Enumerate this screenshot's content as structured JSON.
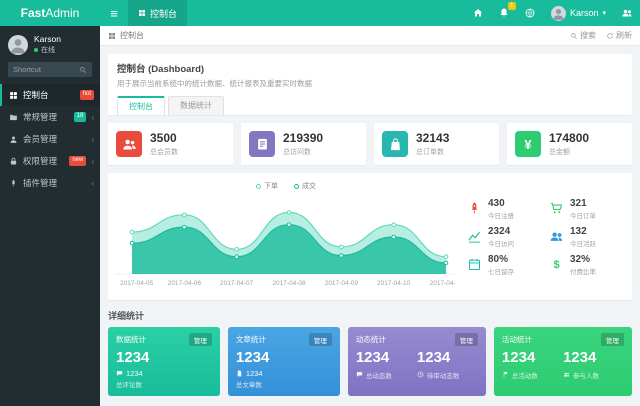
{
  "colors": {
    "accent": "#18bc9c",
    "navbar_bg": "#18bc9c",
    "sidebar_bg": "#222d32",
    "content_bg": "#f1f4f6",
    "badge_hot": "#e74c3c",
    "badge_count": "#18bc9c",
    "badge_new": "#e74c3c",
    "notification_badge": "#f1c40f"
  },
  "navbar": {
    "logo_bold": "Fast",
    "logo_light": "Admin",
    "tab": {
      "label": "控制台"
    },
    "notification_count": "1",
    "user_name": "Karson"
  },
  "sidebar": {
    "user": {
      "name": "Karson",
      "status": "在线"
    },
    "shortcut_label": "Shortcut",
    "items": [
      {
        "label": "控制台",
        "badge": "hot",
        "active": true
      },
      {
        "label": "常规管理",
        "badge": "18"
      },
      {
        "label": "会员管理",
        "badge": ""
      },
      {
        "label": "权限管理",
        "badge": "new"
      },
      {
        "label": "插件管理",
        "badge": ""
      }
    ]
  },
  "toolbar": {
    "breadcrumb": "控制台",
    "search_label": "搜索",
    "refresh_label": "刷新"
  },
  "intro": {
    "title": "控制台 (Dashboard)",
    "subtitle": "用于展示当前系统中的统计数据、统计报表及重要实时数据",
    "tabs": [
      {
        "label": "控制台",
        "active": true
      },
      {
        "label": "数据统计",
        "active": false
      }
    ]
  },
  "stats": [
    {
      "value": "3500",
      "label": "总会员数",
      "color": "#e74c3c",
      "icon": "users-icon"
    },
    {
      "value": "219390",
      "label": "总访问数",
      "color": "#8377c0",
      "icon": "book-icon"
    },
    {
      "value": "32143",
      "label": "总订单数",
      "color": "#29b6b0",
      "icon": "bag-icon"
    },
    {
      "value": "174800",
      "label": "总金额",
      "color": "#2ecc71",
      "icon": "yen-icon"
    }
  ],
  "mini_stats": [
    {
      "value": "430",
      "label": "今日注册",
      "icon": "rocket-icon",
      "color": "#e74c3c"
    },
    {
      "value": "321",
      "label": "今日订单",
      "icon": "cart-icon",
      "color": "#2ecc71"
    },
    {
      "value": "2324",
      "label": "今日访问",
      "icon": "chart-icon",
      "color": "#18bc9c"
    },
    {
      "value": "132",
      "label": "今日活跃",
      "icon": "users-icon",
      "color": "#3498db"
    },
    {
      "value": "80%",
      "label": "七日留存",
      "icon": "calendar-icon",
      "color": "#1abcb0"
    },
    {
      "value": "32%",
      "label": "付费比率",
      "icon": "dollar-icon",
      "color": "#2ecc71"
    }
  ],
  "detail": {
    "heading": "详细统计",
    "cards": [
      {
        "title": "数据统计",
        "action": "管理",
        "value": "1234",
        "sub_value": "1234",
        "sub_label": "总评论数"
      },
      {
        "title": "文章统计",
        "action": "管理",
        "value": "1234",
        "sub_value": "1234",
        "sub_label": "总文章数"
      },
      {
        "title": "动态统计",
        "action": "管理",
        "columns": [
          {
            "value": "1234",
            "label": "总动态数"
          },
          {
            "value": "1234",
            "label": "待审动态数"
          }
        ]
      },
      {
        "title": "活动统计",
        "action": "管理",
        "columns": [
          {
            "value": "1234",
            "label": "总活动数"
          },
          {
            "value": "1234",
            "label": "参与人数"
          }
        ]
      }
    ]
  },
  "chart_data": {
    "type": "area",
    "title": "",
    "x": [
      "2017-04-05",
      "2017-04-06",
      "2017-04-07",
      "2017-04-08",
      "2017-04-09",
      "2017-04-10",
      "2017-04-11"
    ],
    "series": [
      {
        "name": "下单",
        "color": "#5fd9bd",
        "values": [
          34,
          48,
          20,
          50,
          22,
          40,
          14
        ]
      },
      {
        "name": "成交",
        "color": "#1abc9c",
        "values": [
          25,
          38,
          14,
          40,
          15,
          30,
          9
        ]
      }
    ],
    "ylim": [
      0,
      60
    ],
    "legend_position": "top",
    "grid": false
  }
}
